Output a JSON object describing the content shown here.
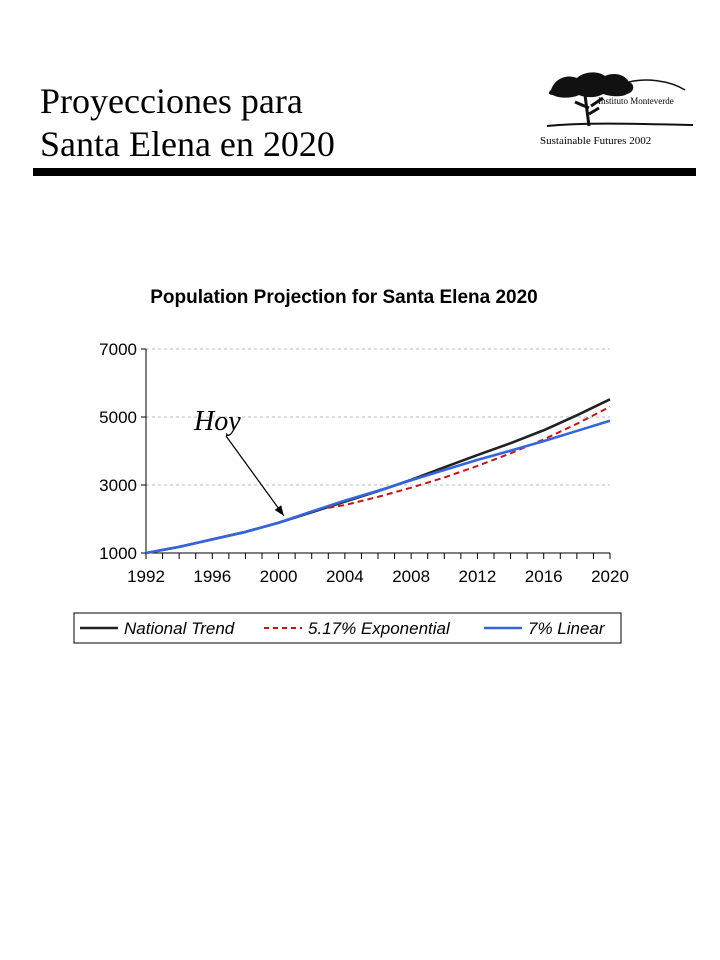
{
  "header": {
    "title_line1": "Proyecciones para",
    "title_line2": "Santa Elena en 2020",
    "logo_text": "Instituto Monteverde",
    "footer_note": "Sustainable Futures 2002"
  },
  "chart_data": {
    "type": "line",
    "title": "Population Projection for Santa Elena 2020",
    "xlabel": "",
    "ylabel": "",
    "xlim": [
      1992,
      2020
    ],
    "ylim": [
      1000,
      7000
    ],
    "x_ticks": [
      1992,
      1996,
      2000,
      2004,
      2008,
      2012,
      2016,
      2020
    ],
    "y_ticks": [
      1000,
      3000,
      5000,
      7000
    ],
    "grid": "horizontal dashed",
    "legend_position": "bottom",
    "series": [
      {
        "name": "National Trend",
        "color": "#222222",
        "style": "solid",
        "x": [
          1992,
          1994,
          1996,
          1998,
          2000,
          2002,
          2004,
          2006,
          2008,
          2010,
          2012,
          2014,
          2016,
          2018,
          2020
        ],
        "y": [
          1000,
          1180,
          1400,
          1620,
          1890,
          2200,
          2510,
          2820,
          3150,
          3520,
          3880,
          4230,
          4610,
          5050,
          5520
        ]
      },
      {
        "name": "5.17% Exponential",
        "color": "#cc1111",
        "style": "dashed",
        "x": [
          2003,
          2004,
          2006,
          2008,
          2010,
          2012,
          2014,
          2016,
          2018,
          2020
        ],
        "y": [
          2330,
          2410,
          2650,
          2920,
          3220,
          3560,
          3930,
          4340,
          4800,
          5300
        ]
      },
      {
        "name": "7% Linear",
        "color": "#3366dd",
        "style": "solid",
        "x": [
          1992,
          1994,
          1996,
          1998,
          2000,
          2002,
          2004,
          2006,
          2008,
          2010,
          2012,
          2014,
          2016,
          2018,
          2020
        ],
        "y": [
          1000,
          1180,
          1400,
          1620,
          1890,
          2220,
          2540,
          2830,
          3140,
          3440,
          3740,
          4010,
          4290,
          4590,
          4890
        ]
      }
    ],
    "annotation": {
      "text": "Hoy",
      "x": 2000.5,
      "y": 1950
    }
  },
  "colors": {
    "grid": "#bbbbbb",
    "axis": "#000000",
    "rule": "#000000"
  },
  "icons": {
    "logo": "tree-icon"
  }
}
